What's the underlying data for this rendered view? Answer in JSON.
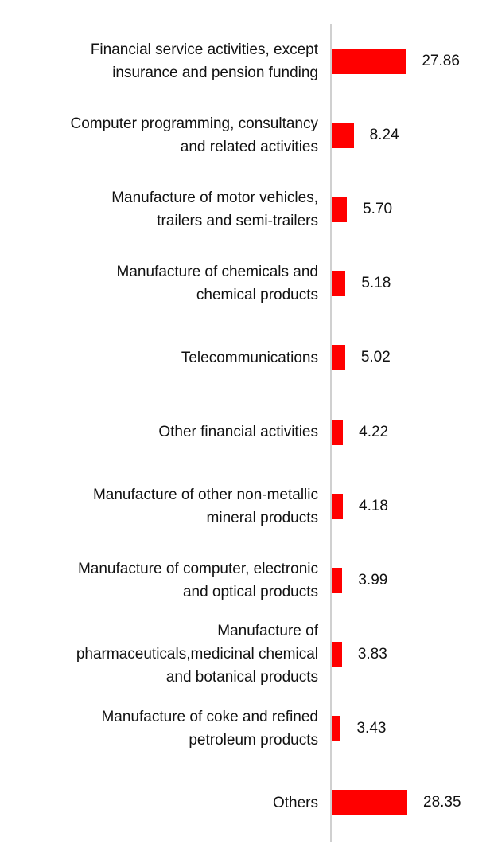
{
  "colors": {
    "bar": "#ff0000",
    "axis": "#d0d0d0",
    "text": "#111111"
  },
  "chart_data": {
    "type": "bar",
    "orientation": "horizontal",
    "title": "",
    "xlabel": "",
    "ylabel": "",
    "grid": false,
    "categories": [
      "Financial service activities, except\ninsurance and pension funding",
      "Computer programming, consultancy\nand related activities",
      "Manufacture of motor vehicles,\ntrailers and semi-trailers",
      "Manufacture of chemicals and\nchemical products",
      "Telecommunications",
      "Other financial activities",
      "Manufacture of other non-metallic\nmineral products",
      "Manufacture of computer, electronic\nand optical products",
      "Manufacture of\npharmaceuticals,medicinal chemical\nand botanical products",
      "Manufacture of coke and refined\npetroleum products",
      "Others"
    ],
    "values": [
      27.86,
      8.24,
      5.7,
      5.18,
      5.02,
      4.22,
      4.18,
      3.99,
      3.83,
      3.43,
      28.35
    ],
    "value_labels": [
      "27.86",
      "8.24",
      "5.70",
      "5.18",
      "5.02",
      "4.22",
      "4.18",
      "3.99",
      "3.83",
      "3.43",
      "28.35"
    ],
    "xlim": [
      0,
      28.35
    ]
  }
}
